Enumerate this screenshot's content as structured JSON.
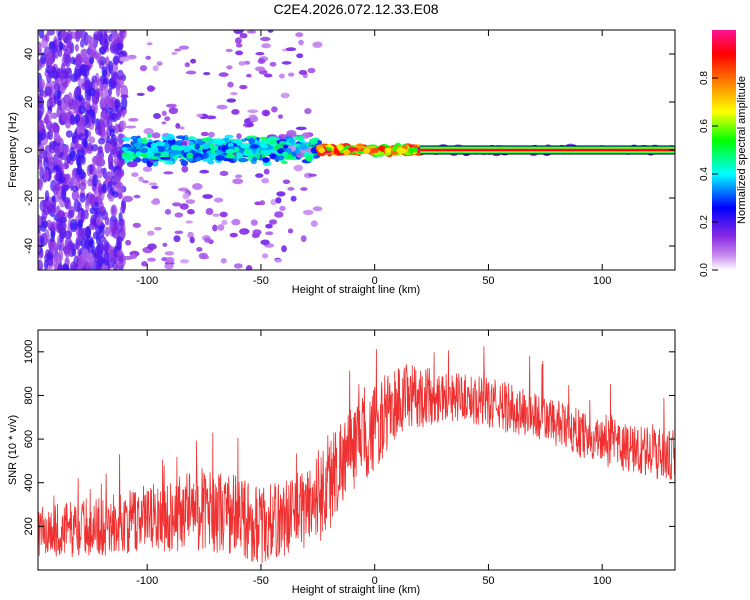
{
  "title": "C2E4.2026.072.12.33.E08",
  "chart_data": [
    {
      "type": "heatmap",
      "name": "spectrogram",
      "xlabel": "Height of straight line (km)",
      "ylabel": "Frequency (Hz)",
      "xlim": [
        -148,
        132
      ],
      "ylim": [
        -50,
        50
      ],
      "xticks": [
        -100,
        -50,
        0,
        50,
        100
      ],
      "yticks": [
        -40,
        -20,
        0,
        20,
        40
      ],
      "colorbar": {
        "label": "Normalized spectral amplitude",
        "range": [
          0,
          1
        ],
        "ticks": [
          0.0,
          0.2,
          0.4,
          0.6,
          0.8
        ],
        "tick_labels": [
          "0.0",
          "0.2",
          "0.4",
          "0.6",
          "0.8"
        ],
        "colormap": [
          "#ffffff",
          "#8a2be2",
          "#0000ff",
          "#00ffff",
          "#00ff00",
          "#ffff00",
          "#ff8000",
          "#ff0000",
          "#ff1493"
        ]
      },
      "description_series": [
        {
          "x_range": [
            -148,
            -110
          ],
          "freq_spread_hz": 50,
          "amplitude": 0.15
        },
        {
          "x_range": [
            -110,
            -25
          ],
          "freq_spread_hz": 6,
          "amplitude": 0.35
        },
        {
          "x_range": [
            -25,
            20
          ],
          "freq_spread_hz": 2,
          "amplitude": 0.8
        },
        {
          "x_range": [
            20,
            132
          ],
          "freq_spread_hz": 0.5,
          "amplitude": 0.85
        }
      ]
    },
    {
      "type": "line",
      "name": "snr",
      "xlabel": "Height of straight line (km)",
      "ylabel": "SNR (10 * v/v)",
      "xlim": [
        -148,
        132
      ],
      "ylim": [
        0,
        1100
      ],
      "xticks": [
        -100,
        -50,
        0,
        50,
        100
      ],
      "yticks": [
        200,
        400,
        600,
        800,
        1000
      ],
      "color": "#ef3030",
      "envelope": {
        "x": [
          -148,
          -130,
          -110,
          -90,
          -80,
          -70,
          -60,
          -50,
          -40,
          -30,
          -20,
          -15,
          -10,
          -5,
          0,
          10,
          20,
          30,
          40,
          50,
          60,
          70,
          80,
          90,
          100,
          110,
          120,
          132
        ],
        "low": [
          50,
          60,
          70,
          80,
          90,
          80,
          50,
          20,
          60,
          100,
          150,
          300,
          350,
          400,
          450,
          600,
          650,
          680,
          680,
          650,
          620,
          600,
          560,
          520,
          480,
          440,
          420,
          400
        ],
        "high": [
          300,
          320,
          360,
          420,
          480,
          460,
          450,
          380,
          420,
          480,
          650,
          700,
          750,
          800,
          850,
          950,
          940,
          920,
          900,
          880,
          860,
          820,
          780,
          740,
          700,
          680,
          660,
          640
        ]
      }
    }
  ]
}
